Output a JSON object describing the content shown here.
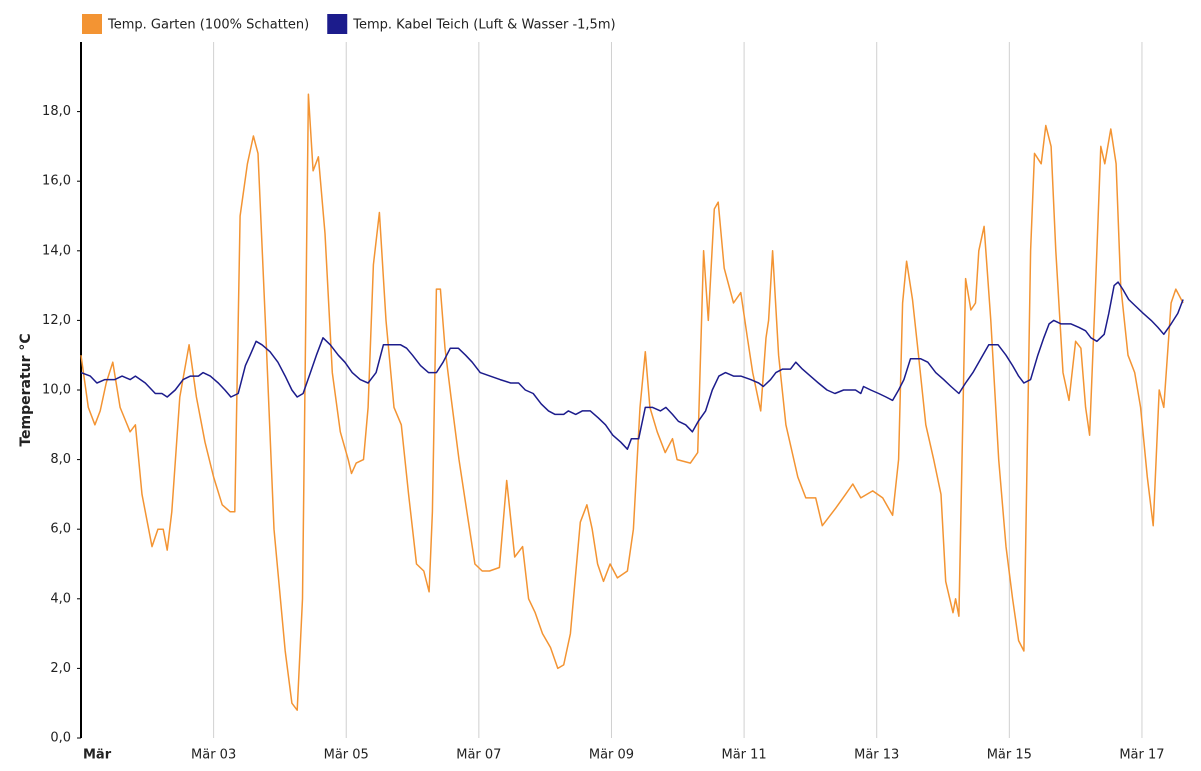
{
  "chart_data": {
    "type": "line",
    "y_label": "Temperatur °C",
    "xlim": [
      1,
      17.8
    ],
    "ylim": [
      0,
      20
    ],
    "xticks": [
      {
        "value": 1,
        "label": "Mär"
      },
      {
        "value": 3,
        "label": "Mär 03"
      },
      {
        "value": 5,
        "label": "Mär 05"
      },
      {
        "value": 7,
        "label": "Mär 07"
      },
      {
        "value": 9,
        "label": "Mär 09"
      },
      {
        "value": 11,
        "label": "Mär 11"
      },
      {
        "value": 13,
        "label": "Mär 13"
      },
      {
        "value": 15,
        "label": "Mär 15"
      },
      {
        "value": 17,
        "label": "Mär 17"
      }
    ],
    "yticks": [
      {
        "value": 0,
        "label": "0,0"
      },
      {
        "value": 2,
        "label": "2,0"
      },
      {
        "value": 4,
        "label": "4,0"
      },
      {
        "value": 6,
        "label": "6,0"
      },
      {
        "value": 8,
        "label": "8,0"
      },
      {
        "value": 10,
        "label": "10,0"
      },
      {
        "value": 12,
        "label": "12,0"
      },
      {
        "value": 14,
        "label": "14,0"
      },
      {
        "value": 16,
        "label": "16,0"
      },
      {
        "value": 18,
        "label": "18,0"
      }
    ],
    "x_grid": true,
    "series": [
      {
        "name": "Temp. Garten (100% Schatten)",
        "color": "#f39433",
        "x": [
          1.0,
          1.11,
          1.21,
          1.29,
          1.38,
          1.48,
          1.59,
          1.74,
          1.82,
          1.92,
          2.07,
          2.16,
          2.24,
          2.3,
          2.37,
          2.49,
          2.63,
          2.74,
          2.87,
          3.0,
          3.13,
          3.25,
          3.32,
          3.4,
          3.51,
          3.6,
          3.67,
          3.78,
          3.91,
          4.08,
          4.18,
          4.26,
          4.34,
          4.43,
          4.5,
          4.58,
          4.68,
          4.79,
          4.91,
          5.03,
          5.08,
          5.15,
          5.26,
          5.33,
          5.41,
          5.5,
          5.6,
          5.72,
          5.83,
          5.94,
          6.06,
          6.17,
          6.25,
          6.3,
          6.36,
          6.42,
          6.49,
          6.58,
          6.7,
          6.82,
          6.94,
          7.05,
          7.16,
          7.31,
          7.42,
          7.54,
          7.66,
          7.75,
          7.85,
          7.96,
          8.08,
          8.19,
          8.28,
          8.38,
          8.45,
          8.53,
          8.63,
          8.71,
          8.79,
          8.88,
          8.98,
          9.09,
          9.24,
          9.33,
          9.43,
          9.51,
          9.58,
          9.69,
          9.81,
          9.92,
          9.99,
          10.19,
          10.3,
          10.39,
          10.46,
          10.55,
          10.61,
          10.7,
          10.84,
          10.95,
          11.05,
          11.13,
          11.25,
          11.33,
          11.37,
          11.43,
          11.52,
          11.63,
          11.81,
          11.93,
          12.08,
          12.18,
          12.38,
          12.53,
          12.64,
          12.76,
          12.94,
          13.09,
          13.24,
          13.33,
          13.39,
          13.45,
          13.54,
          13.63,
          13.74,
          13.86,
          13.97,
          14.04,
          14.15,
          14.19,
          14.24,
          14.34,
          14.42,
          14.49,
          14.54,
          14.62,
          14.72,
          14.84,
          14.95,
          15.05,
          15.14,
          15.22,
          15.32,
          15.38,
          15.48,
          15.55,
          15.63,
          15.7,
          15.81,
          15.9,
          16.0,
          16.08,
          16.15,
          16.21,
          16.29,
          16.38,
          16.44,
          16.53,
          16.61,
          16.68,
          16.79,
          16.89,
          16.98,
          17.08,
          17.17,
          17.26,
          17.33,
          17.44,
          17.51,
          17.62
        ],
        "values": [
          11.0,
          9.5,
          9.0,
          9.4,
          10.2,
          10.8,
          9.5,
          8.8,
          9.0,
          7.0,
          5.5,
          6.0,
          6.0,
          5.4,
          6.5,
          9.8,
          11.3,
          9.8,
          8.5,
          7.5,
          6.7,
          6.5,
          6.5,
          15.0,
          16.5,
          17.3,
          16.8,
          12.0,
          6.0,
          2.5,
          1.0,
          0.8,
          4.0,
          18.5,
          16.3,
          16.7,
          14.5,
          10.5,
          8.8,
          8.0,
          7.6,
          7.9,
          8.0,
          9.5,
          13.6,
          15.1,
          12.0,
          9.5,
          9.0,
          7.0,
          5.0,
          4.8,
          4.2,
          6.5,
          12.9,
          12.9,
          11.2,
          9.8,
          8.0,
          6.5,
          5.0,
          4.8,
          4.8,
          4.9,
          7.4,
          5.2,
          5.5,
          4.0,
          3.6,
          3.0,
          2.6,
          2.0,
          2.1,
          3.0,
          4.5,
          6.2,
          6.7,
          6.0,
          5.0,
          4.5,
          5.0,
          4.6,
          4.8,
          6.0,
          9.5,
          11.1,
          9.5,
          8.8,
          8.2,
          8.6,
          8.0,
          7.9,
          8.2,
          14.0,
          12.0,
          15.2,
          15.4,
          13.5,
          12.5,
          12.8,
          11.5,
          10.5,
          9.4,
          11.5,
          12.0,
          14.0,
          11.0,
          9.0,
          7.5,
          6.9,
          6.9,
          6.1,
          6.6,
          7.0,
          7.3,
          6.9,
          7.1,
          6.9,
          6.4,
          8.0,
          12.5,
          13.7,
          12.6,
          11.0,
          9.0,
          8.0,
          7.0,
          4.5,
          3.6,
          4.0,
          3.5,
          13.2,
          12.3,
          12.5,
          14.0,
          14.7,
          12.0,
          8.0,
          5.5,
          4.0,
          2.8,
          2.5,
          14.0,
          16.8,
          16.5,
          17.6,
          17.0,
          14.0,
          10.5,
          9.7,
          11.4,
          11.2,
          9.5,
          8.7,
          12.5,
          17.0,
          16.5,
          17.5,
          16.5,
          13.0,
          11.0,
          10.5,
          9.5,
          7.5,
          6.1,
          10.0,
          9.5,
          12.5,
          12.9,
          12.5
        ]
      },
      {
        "name": "Temp. Kabel Teich (Luft & Wasser -1,5m)",
        "color": "#1c1c8c",
        "x": [
          1.0,
          1.14,
          1.24,
          1.36,
          1.51,
          1.62,
          1.74,
          1.82,
          1.97,
          2.12,
          2.22,
          2.3,
          2.42,
          2.54,
          2.65,
          2.77,
          2.84,
          2.95,
          3.07,
          3.17,
          3.26,
          3.37,
          3.48,
          3.55,
          3.64,
          3.73,
          3.85,
          3.97,
          4.08,
          4.18,
          4.26,
          4.35,
          4.46,
          4.55,
          4.65,
          4.76,
          4.88,
          4.98,
          5.09,
          5.21,
          5.33,
          5.45,
          5.56,
          5.69,
          5.82,
          5.91,
          6.0,
          6.12,
          6.24,
          6.36,
          6.46,
          6.57,
          6.69,
          6.8,
          6.9,
          7.02,
          7.17,
          7.32,
          7.48,
          7.6,
          7.7,
          7.82,
          7.94,
          8.05,
          8.15,
          8.28,
          8.35,
          8.46,
          8.56,
          8.68,
          8.8,
          8.91,
          9.02,
          9.14,
          9.24,
          9.3,
          9.41,
          9.51,
          9.62,
          9.74,
          9.82,
          9.92,
          10.01,
          10.12,
          10.22,
          10.31,
          10.42,
          10.52,
          10.62,
          10.72,
          10.84,
          10.95,
          11.1,
          11.22,
          11.29,
          11.4,
          11.48,
          11.58,
          11.7,
          11.78,
          11.88,
          12.0,
          12.12,
          12.25,
          12.37,
          12.5,
          12.68,
          12.76,
          12.8,
          12.91,
          13.03,
          13.14,
          13.24,
          13.33,
          13.41,
          13.51,
          13.66,
          13.77,
          13.89,
          14.01,
          14.12,
          14.24,
          14.34,
          14.45,
          14.57,
          14.69,
          14.83,
          14.95,
          15.05,
          15.14,
          15.22,
          15.32,
          15.43,
          15.52,
          15.6,
          15.67,
          15.78,
          15.93,
          16.05,
          16.15,
          16.23,
          16.32,
          16.43,
          16.5,
          16.58,
          16.64,
          16.71,
          16.8,
          16.91,
          17.02,
          17.14,
          17.24,
          17.33,
          17.44,
          17.54,
          17.62
        ],
        "values": [
          10.5,
          10.4,
          10.2,
          10.3,
          10.3,
          10.4,
          10.3,
          10.4,
          10.2,
          9.9,
          9.9,
          9.8,
          10.0,
          10.3,
          10.4,
          10.4,
          10.5,
          10.4,
          10.2,
          10.0,
          9.8,
          9.9,
          10.7,
          11.0,
          11.4,
          11.3,
          11.1,
          10.8,
          10.4,
          10.0,
          9.8,
          9.9,
          10.5,
          11.0,
          11.5,
          11.3,
          11.0,
          10.8,
          10.5,
          10.3,
          10.2,
          10.5,
          11.3,
          11.3,
          11.3,
          11.2,
          11.0,
          10.7,
          10.5,
          10.5,
          10.8,
          11.2,
          11.2,
          11.0,
          10.8,
          10.5,
          10.4,
          10.3,
          10.2,
          10.2,
          10.0,
          9.9,
          9.6,
          9.4,
          9.3,
          9.3,
          9.4,
          9.3,
          9.4,
          9.4,
          9.2,
          9.0,
          8.7,
          8.5,
          8.3,
          8.6,
          8.6,
          9.5,
          9.5,
          9.4,
          9.5,
          9.3,
          9.1,
          9.0,
          8.8,
          9.1,
          9.4,
          10.0,
          10.4,
          10.5,
          10.4,
          10.4,
          10.3,
          10.2,
          10.1,
          10.3,
          10.5,
          10.6,
          10.6,
          10.8,
          10.6,
          10.4,
          10.2,
          10.0,
          9.9,
          10.0,
          10.0,
          9.9,
          10.1,
          10.0,
          9.9,
          9.8,
          9.7,
          10.0,
          10.3,
          10.9,
          10.9,
          10.8,
          10.5,
          10.3,
          10.1,
          9.9,
          10.2,
          10.5,
          10.9,
          11.3,
          11.3,
          11.0,
          10.7,
          10.4,
          10.2,
          10.3,
          11.0,
          11.5,
          11.9,
          12.0,
          11.9,
          11.9,
          11.8,
          11.7,
          11.5,
          11.4,
          11.6,
          12.2,
          13.0,
          13.1,
          12.9,
          12.6,
          12.4,
          12.2,
          12.0,
          11.8,
          11.6,
          11.9,
          12.2,
          12.6
        ]
      }
    ]
  }
}
